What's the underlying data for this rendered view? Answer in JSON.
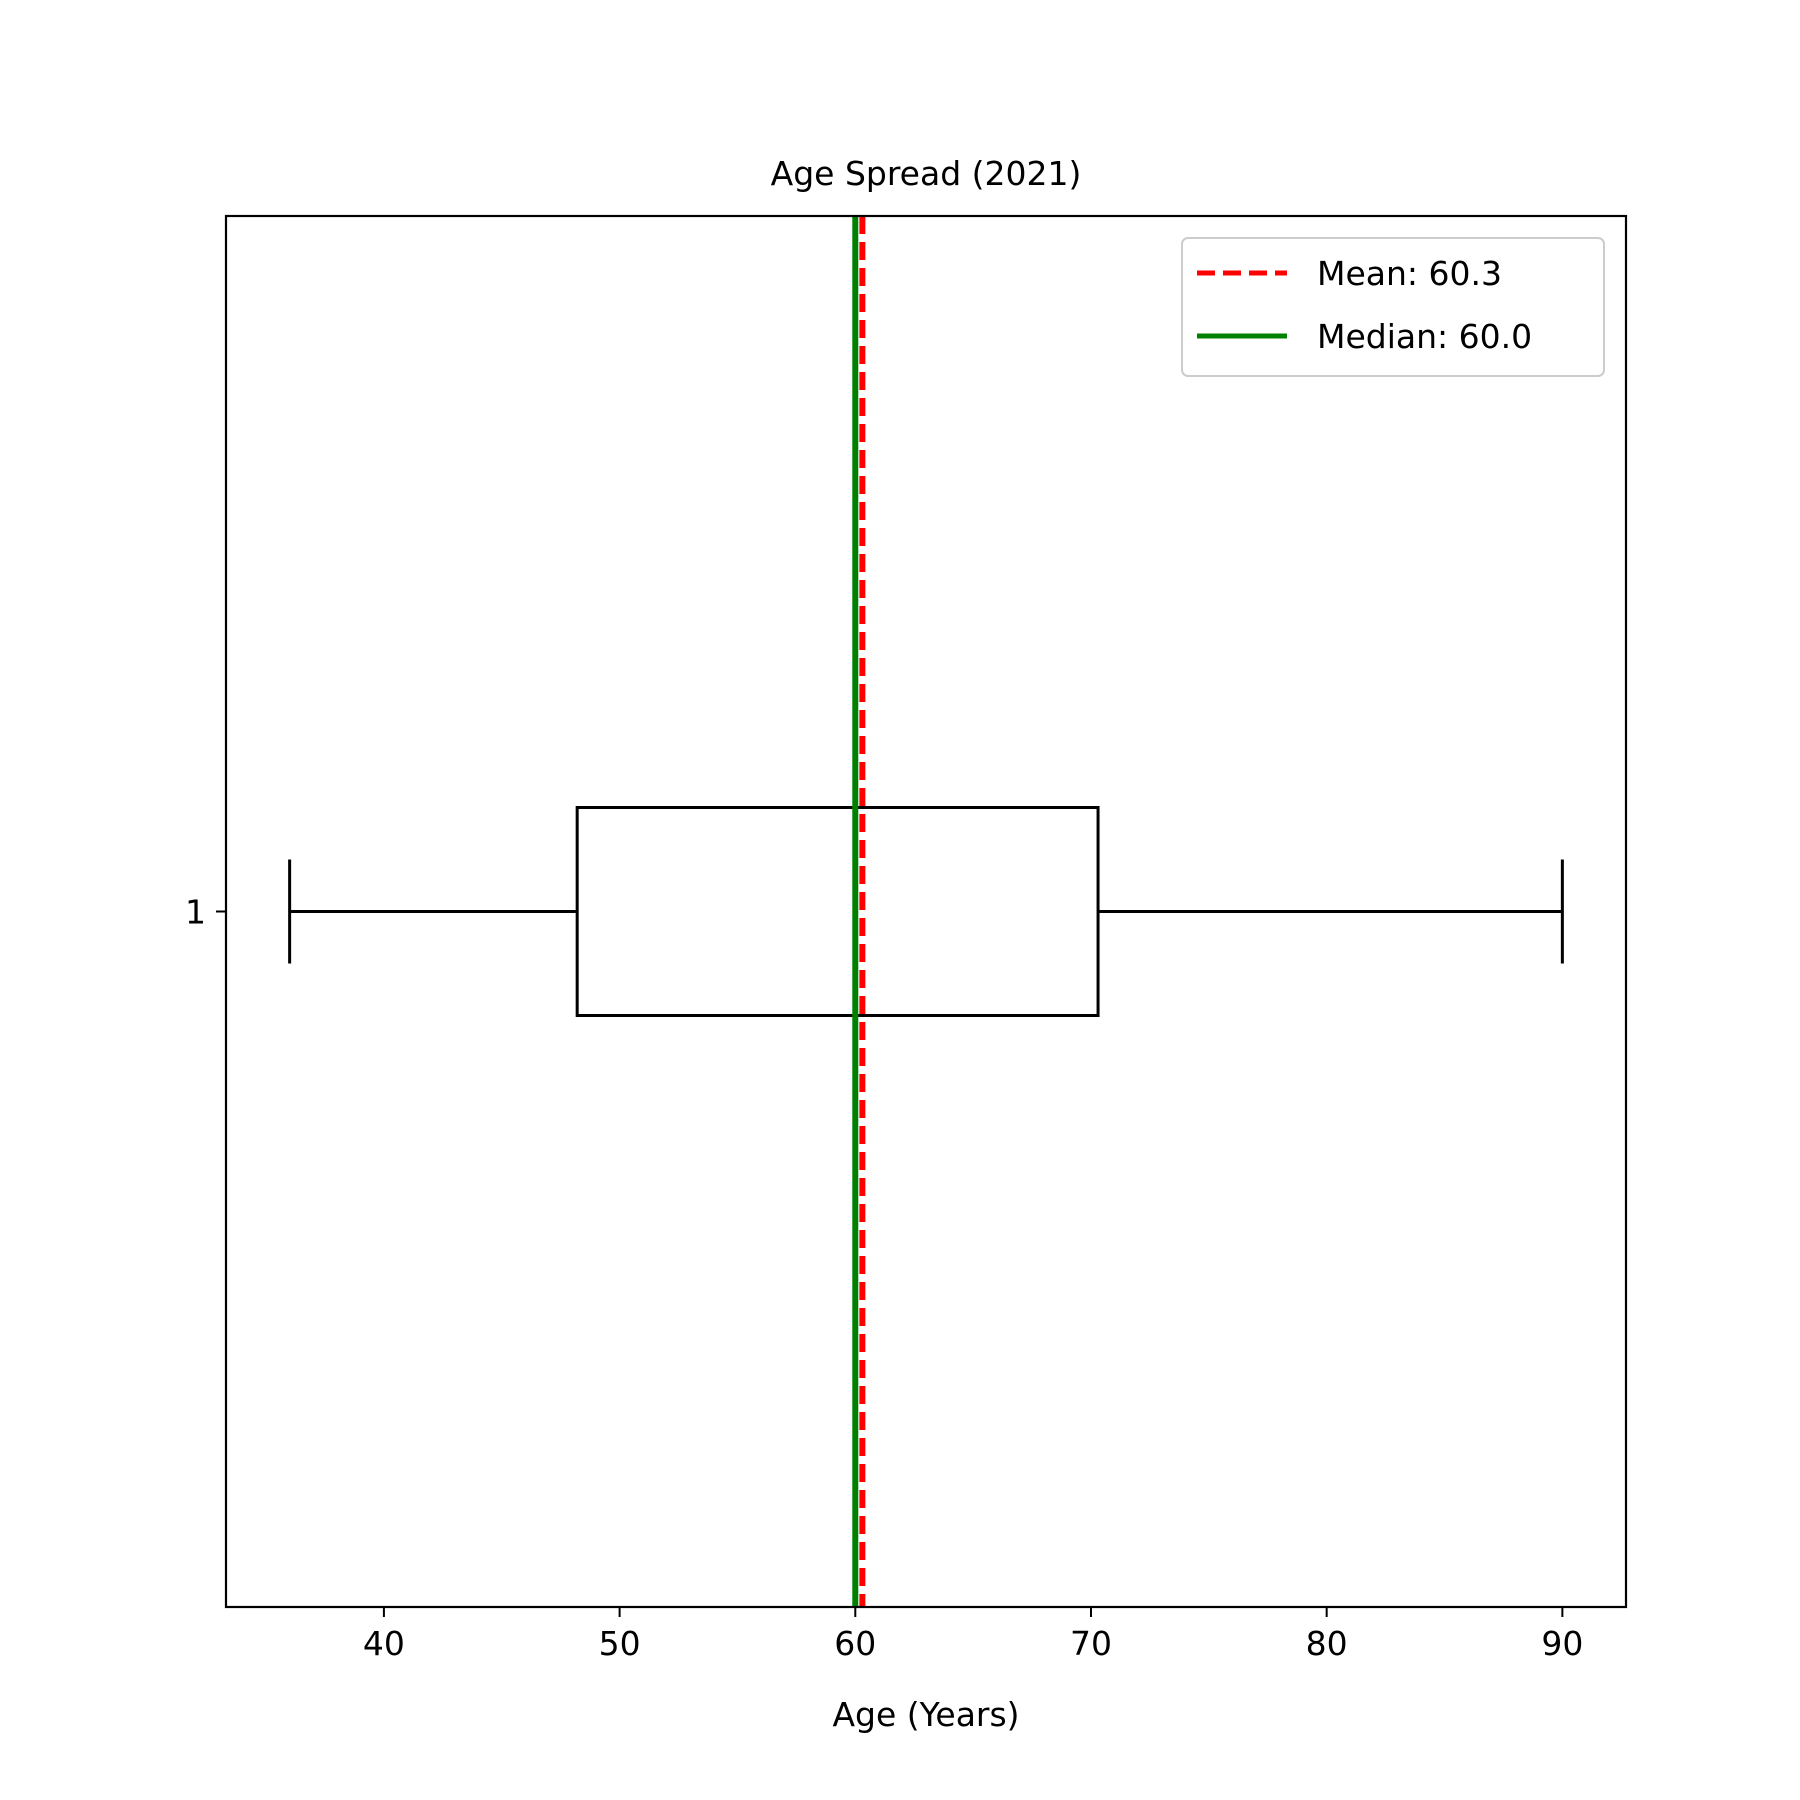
{
  "chart_data": {
    "type": "boxplot",
    "orientation": "horizontal",
    "title": "Age Spread (2021)",
    "xlabel": "Age (Years)",
    "ylabel": "",
    "xlim": [
      33.3,
      92.7
    ],
    "xticks": [
      40,
      50,
      60,
      70,
      80,
      90
    ],
    "yticks": [
      "1"
    ],
    "grid": false,
    "legend_position": "top-right",
    "box": {
      "category": "1",
      "whisker_low": 36,
      "q1": 48.2,
      "median": 60,
      "q3": 70.3,
      "whisker_high": 90
    },
    "reference_lines": [
      {
        "label": "Mean: 60.3",
        "value": 60.3,
        "color": "#ff0000",
        "style": "dashed"
      },
      {
        "label": "Median: 60.0",
        "value": 60.0,
        "color": "#008000",
        "style": "solid"
      }
    ],
    "colors": {
      "box": "#000000",
      "median_line": "#ff7f0e"
    }
  }
}
